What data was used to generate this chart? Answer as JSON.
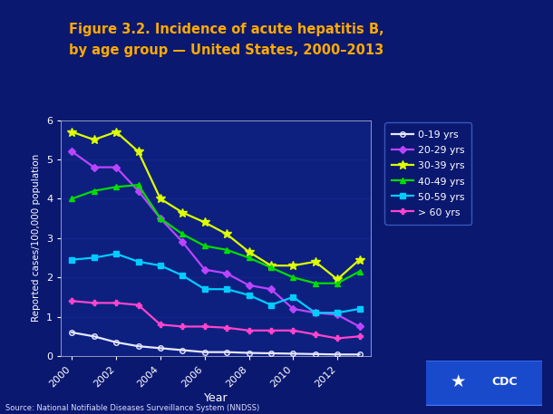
{
  "years": [
    2000,
    2001,
    2002,
    2003,
    2004,
    2005,
    2006,
    2007,
    2008,
    2009,
    2010,
    2011,
    2012,
    2013
  ],
  "series": {
    "0-19 yrs": {
      "values": [
        0.6,
        0.5,
        0.35,
        0.25,
        0.2,
        0.15,
        0.1,
        0.1,
        0.08,
        0.07,
        0.06,
        0.05,
        0.04,
        0.04
      ],
      "color": "#e8e8ff",
      "marker": "o",
      "markersize": 4,
      "linewidth": 1.6,
      "markerfacecolor": "none"
    },
    "20-29 yrs": {
      "values": [
        5.2,
        4.8,
        4.8,
        4.2,
        3.5,
        2.9,
        2.2,
        2.1,
        1.8,
        1.7,
        1.2,
        1.1,
        1.05,
        0.75
      ],
      "color": "#bb44ff",
      "marker": "D",
      "markersize": 4,
      "linewidth": 1.6,
      "markerfacecolor": "#bb44ff"
    },
    "30-39 yrs": {
      "values": [
        5.7,
        5.5,
        5.7,
        5.2,
        4.0,
        3.65,
        3.4,
        3.1,
        2.65,
        2.3,
        2.3,
        2.4,
        1.95,
        2.45
      ],
      "color": "#ddff00",
      "marker": "*",
      "markersize": 7,
      "linewidth": 1.6,
      "markerfacecolor": "#ddff00"
    },
    "40-49 yrs": {
      "values": [
        4.0,
        4.2,
        4.3,
        4.35,
        3.5,
        3.1,
        2.8,
        2.7,
        2.5,
        2.25,
        2.0,
        1.85,
        1.85,
        2.15
      ],
      "color": "#00dd00",
      "marker": "^",
      "markersize": 5,
      "linewidth": 1.6,
      "markerfacecolor": "#00dd00"
    },
    "50-59 yrs": {
      "values": [
        2.45,
        2.5,
        2.6,
        2.4,
        2.3,
        2.05,
        1.7,
        1.7,
        1.55,
        1.3,
        1.5,
        1.1,
        1.1,
        1.2
      ],
      "color": "#00ccff",
      "marker": "s",
      "markersize": 4,
      "linewidth": 1.6,
      "markerfacecolor": "#00ccff"
    },
    "> 60 yrs": {
      "values": [
        1.4,
        1.35,
        1.35,
        1.3,
        0.8,
        0.75,
        0.75,
        0.72,
        0.65,
        0.65,
        0.65,
        0.55,
        0.45,
        0.5
      ],
      "color": "#ff44cc",
      "marker": "P",
      "markersize": 4,
      "linewidth": 1.6,
      "markerfacecolor": "#ff44cc"
    }
  },
  "title_line1": "Figure 3.2. Incidence of acute hepatitis B,",
  "title_line2": "by age group — United States, 2000–2013",
  "xlabel": "Year",
  "ylabel": "Reported cases/100,000 population",
  "ylim": [
    0,
    6
  ],
  "yticks": [
    0,
    1,
    2,
    3,
    4,
    5,
    6
  ],
  "xticks": [
    2000,
    2002,
    2004,
    2006,
    2008,
    2010,
    2012
  ],
  "bg_color": "#0d2080",
  "plot_bg_color": "#0d2080",
  "title_color": "#ffaa00",
  "axis_label_color": "#ffffff",
  "tick_color": "#ffffff",
  "grid_color": "#1a3399",
  "source_text": "Source: National Notifiable Diseases Surveillance System (NNDSS)",
  "legend_order": [
    "0-19 yrs",
    "20-29 yrs",
    "30-39 yrs",
    "40-49 yrs",
    "50-59 yrs",
    "> 60 yrs"
  ]
}
